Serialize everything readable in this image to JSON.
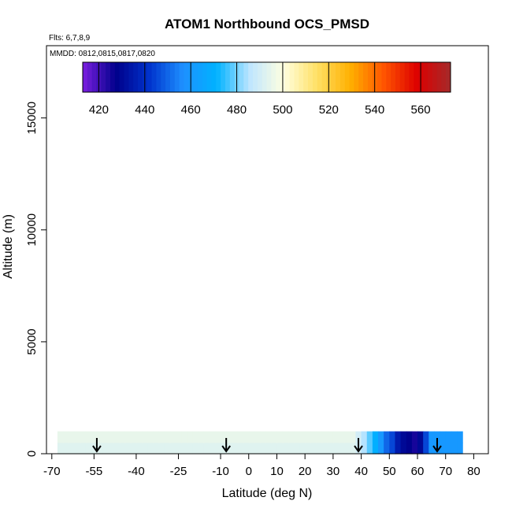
{
  "chart_data": {
    "type": "heatmap",
    "title": "ATOM1 Northbound OCS_PMSD",
    "annotations": [
      "Flts: 6,7,8,9",
      "MMDD: 0812,0815,0817,0820"
    ],
    "xlabel": "Latitude (deg N)",
    "ylabel": "Altitude (m)",
    "xlim": [
      -70,
      85
    ],
    "ylim": [
      0,
      18000
    ],
    "x_ticks": [
      -70,
      -55,
      -40,
      -25,
      -10,
      0,
      10,
      20,
      30,
      40,
      50,
      60,
      70,
      80
    ],
    "x_tick_labels": [
      "-70",
      "-55",
      "-40",
      "-25",
      "-10",
      "0",
      "10",
      "20",
      "30",
      "40",
      "50",
      "60",
      "70",
      "80"
    ],
    "y_ticks": [
      0,
      5000,
      10000,
      15000
    ],
    "y_tick_labels": [
      "0",
      "5000",
      "10000",
      "15000"
    ],
    "grid": false,
    "colorbar": {
      "min": 413,
      "max": 573,
      "ticks": [
        420,
        440,
        460,
        480,
        500,
        520,
        540,
        560
      ],
      "tick_labels": [
        "420",
        "440",
        "460",
        "480",
        "500",
        "520",
        "540",
        "560"
      ],
      "colors": [
        "#7B1FE0",
        "#00008B",
        "#0033CC",
        "#1E90FF",
        "#00B2FF",
        "#BFE6FF",
        "#FFFFE0",
        "#FFE066",
        "#FFB000",
        "#FF5500",
        "#DD0000",
        "#A52A2A"
      ]
    },
    "profile_arrows_lat": [
      -54,
      -8,
      39,
      67
    ],
    "field": {
      "lat_range": [
        -68,
        75
      ],
      "lat_step": 2,
      "alt_step": 500,
      "alt_max": 12000,
      "values": [
        [
          493,
          493,
          493,
          493,
          493,
          493,
          493,
          493,
          493,
          493,
          493,
          493,
          493,
          493,
          493,
          493,
          493,
          493,
          493,
          493,
          493,
          493,
          493,
          493,
          493,
          493,
          493,
          493,
          493,
          493,
          493,
          493,
          493,
          493,
          493,
          493,
          493,
          493,
          493,
          493,
          493,
          493,
          493,
          493,
          493,
          493,
          493,
          493,
          493,
          493,
          493,
          493,
          493,
          490,
          485,
          478,
          470,
          460,
          450,
          445,
          435,
          430,
          428,
          425,
          430,
          445,
          460,
          460,
          460,
          460,
          460,
          460
        ],
        [
          495,
          495,
          495,
          495,
          495,
          495,
          495,
          495,
          495,
          495,
          495,
          495,
          495,
          495,
          495,
          495,
          495,
          495,
          495,
          495,
          495,
          495,
          495,
          495,
          495,
          495,
          495,
          495,
          495,
          495,
          495,
          495,
          495,
          495,
          495,
          495,
          495,
          495,
          495,
          495,
          495,
          495,
          495,
          495,
          495,
          495,
          495,
          495,
          495,
          495,
          495,
          495,
          495,
          490,
          485,
          478,
          470,
          460,
          450,
          445,
          435,
          430,
          428,
          425,
          430,
          445,
          460,
          460,
          460,
          460,
          460,
          460
        ]
      ]
    }
  }
}
